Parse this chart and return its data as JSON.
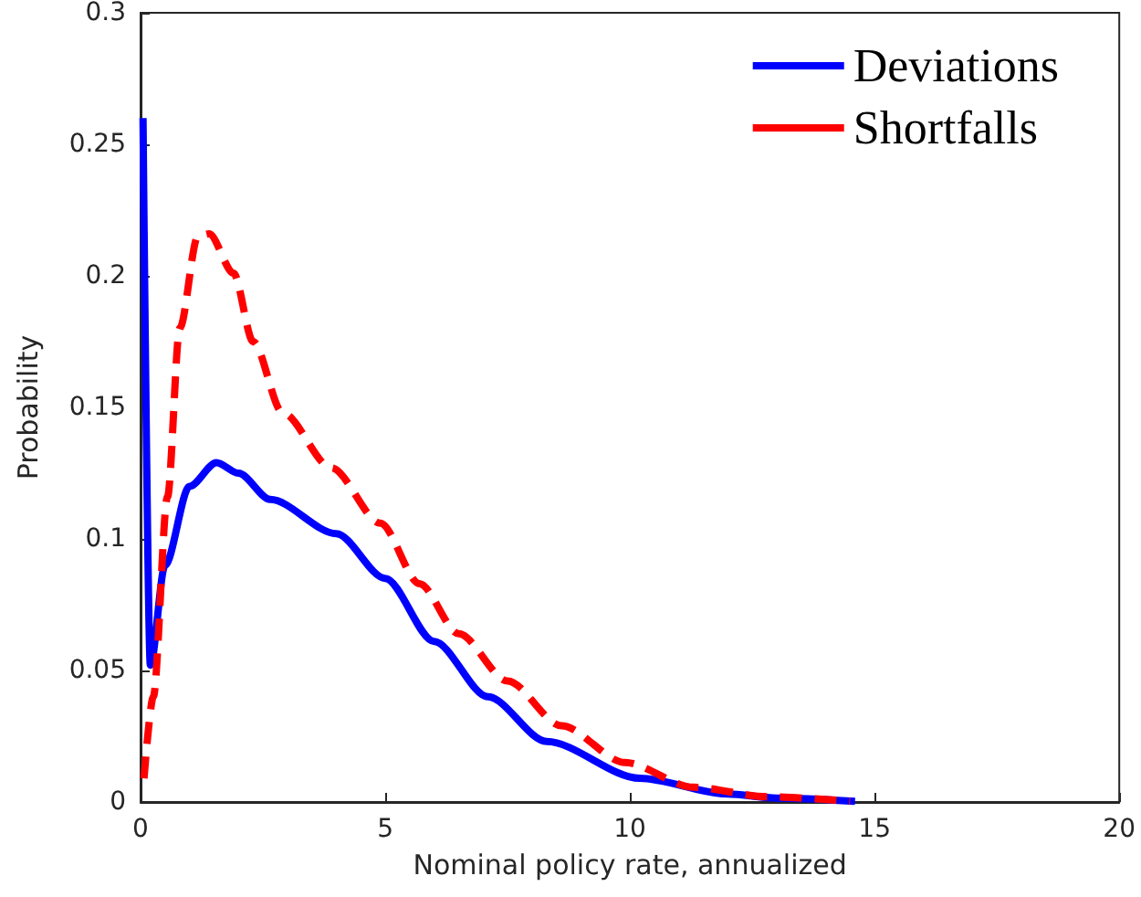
{
  "chart_data": {
    "type": "line",
    "xlabel": "Nominal policy rate, annualized",
    "ylabel": "Probability",
    "xlim": [
      0,
      20
    ],
    "xticks": [
      0,
      5,
      10,
      15,
      20
    ],
    "ylim": [
      0,
      0.3
    ],
    "yticks": [
      0,
      0.05,
      0.1,
      0.15,
      0.2,
      0.25,
      0.3
    ],
    "grid": false,
    "legend": "top right",
    "marker": "none",
    "series": [
      {
        "name": "Deviations",
        "color": "#0000ff",
        "line_style": "solid",
        "x": [
          0.05,
          0.2,
          0.5,
          1.0,
          1.55,
          2.0,
          2.65,
          4.0,
          5.0,
          6.0,
          7.1,
          8.3,
          10.2,
          12,
          13,
          14.6
        ],
        "values": [
          0.26,
          0.052,
          0.09,
          0.12,
          0.129,
          0.125,
          0.115,
          0.102,
          0.085,
          0.061,
          0.04,
          0.023,
          0.009,
          0.003,
          0.0015,
          0.0003
        ]
      },
      {
        "name": "Shortfalls",
        "color": "#ff0000",
        "line_style": "dashed",
        "x": [
          0.07,
          0.26,
          0.55,
          0.8,
          1.17,
          1.4,
          1.9,
          2.3,
          2.9,
          3.9,
          4.9,
          5.7,
          6.5,
          7.5,
          8.6,
          9.9,
          11.3,
          12.8,
          14.5
        ],
        "values": [
          0.009,
          0.04,
          0.116,
          0.18,
          0.215,
          0.216,
          0.201,
          0.175,
          0.148,
          0.127,
          0.106,
          0.083,
          0.064,
          0.046,
          0.029,
          0.015,
          0.0056,
          0.002,
          0.0003
        ]
      }
    ]
  }
}
